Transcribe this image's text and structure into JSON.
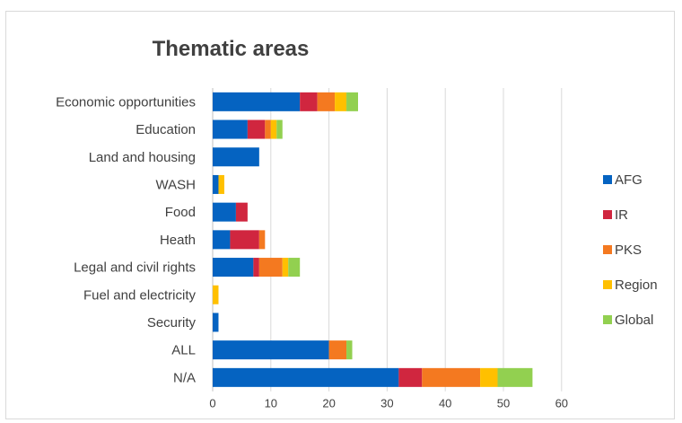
{
  "chart_data": {
    "type": "bar",
    "orientation": "horizontal",
    "stacked": true,
    "title": "Thematic areas",
    "xlabel": "",
    "ylabel": "",
    "xlim": [
      0,
      60
    ],
    "xticks": [
      0,
      10,
      20,
      30,
      40,
      50,
      60
    ],
    "grid": true,
    "legend_position": "right",
    "categories": [
      "Economic opportunities",
      "Education",
      "Land and housing",
      "WASH",
      "Food",
      "Heath",
      "Legal and civil rights",
      "Fuel and electricity",
      "Security",
      "ALL",
      "N/A"
    ],
    "series": [
      {
        "name": "AFG",
        "color": "#0563c1",
        "values": [
          15,
          6,
          8,
          1,
          4,
          3,
          7,
          0,
          1,
          20,
          32
        ]
      },
      {
        "name": "IR",
        "color": "#d0263f",
        "values": [
          3,
          3,
          0,
          0,
          2,
          5,
          1,
          0,
          0,
          0,
          4
        ]
      },
      {
        "name": "PKS",
        "color": "#f47920",
        "values": [
          3,
          1,
          0,
          0,
          0,
          1,
          4,
          0,
          0,
          3,
          10
        ]
      },
      {
        "name": "Region",
        "color": "#ffc000",
        "values": [
          2,
          1,
          0,
          1,
          0,
          0,
          1,
          1,
          0,
          0,
          3
        ]
      },
      {
        "name": "Global",
        "color": "#92d050",
        "values": [
          2,
          1,
          0,
          0,
          0,
          0,
          2,
          0,
          0,
          1,
          6
        ]
      }
    ]
  }
}
